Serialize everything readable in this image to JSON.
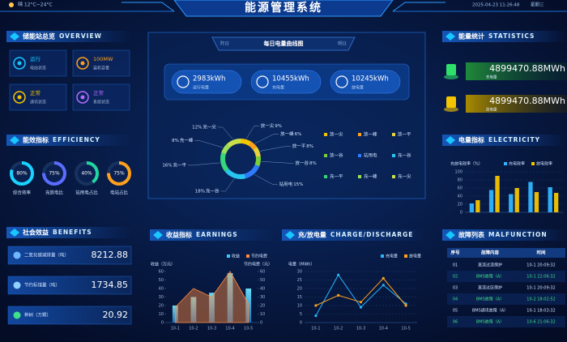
{
  "header": {
    "title": "能源管理系统",
    "weather": "晴 12°C~24°C",
    "datetime": "2025-04-23 11:26:48",
    "weekday": "星期三"
  },
  "overview": {
    "title": "储能站总览",
    "subtitle": "OVERVIEW",
    "items": [
      {
        "value": "运行",
        "label": "电站状态"
      },
      {
        "value": "100MW",
        "label": "装机容量"
      },
      {
        "value": "正常",
        "label": "通讯状态"
      },
      {
        "value": "正常",
        "label": "系统状态"
      }
    ]
  },
  "efficiency": {
    "title": "能效指标",
    "subtitle": "EFFICIENCY",
    "labels": [
      "综合效率",
      "充放电比",
      "站用电占比",
      "电站占比"
    ],
    "values": [
      80,
      75,
      40,
      75
    ],
    "value_labels": [
      "80%",
      "75%",
      "40%",
      "75%"
    ],
    "colors": [
      "#19d3ff",
      "#5b6cff",
      "#21d6a0",
      "#ffa01c"
    ]
  },
  "benefits": {
    "title": "社会效益",
    "subtitle": "BENEFITS",
    "items": [
      {
        "label": "二氧化碳减排量（吨）",
        "value": 8212.88
      },
      {
        "label": "节约标煤量（吨）",
        "value": 1734.85
      },
      {
        "label": "种树（万颗）",
        "value": 20.92
      }
    ]
  },
  "daily": {
    "tabs": [
      "昨日",
      "明日"
    ],
    "title": "每日电量曲线图",
    "stats": [
      {
        "value": "2983kWh",
        "label": "运行电量"
      },
      {
        "value": "10455kWh",
        "label": "充电量"
      },
      {
        "value": "10245kWh",
        "label": "放电量"
      }
    ]
  },
  "statistics": {
    "title": "能量统计",
    "subtitle": "STATISTICS",
    "items": [
      {
        "value": "4899470.88MWh",
        "label": "充电量"
      },
      {
        "value": "4899470.88MWh",
        "label": "放电量"
      }
    ]
  },
  "malfunction": {
    "title": "故障列表",
    "subtitle": "MALFUNCTION",
    "columns": [
      "序号",
      "故障内容",
      "时间"
    ],
    "rows": [
      [
        "01",
        "直流过流保护",
        "10-1 20:09:32"
      ],
      [
        "02",
        "BMS故障（A）",
        "10-1 22:06:32"
      ],
      [
        "03",
        "直流过压保护",
        "10-1 20:09:32"
      ],
      [
        "04",
        "BMS故障（A）",
        "10-2 18:02:52"
      ],
      [
        "05",
        "BMS通讯故障（A）",
        "10-1 18:03:32"
      ],
      [
        "06",
        "BMS故障（A）",
        "10-6 21:06:32"
      ]
    ]
  },
  "chart_data": [
    {
      "type": "pie",
      "categories": [
        "放一尖",
        "放一峰",
        "放一平",
        "放一谷",
        "站用电",
        "充一谷",
        "充一平",
        "充一峰",
        "充一尖"
      ],
      "values": [
        9,
        6,
        8,
        8,
        15,
        18,
        16,
        8,
        12
      ],
      "value_labels": [
        "9%",
        "6%",
        "8%",
        "8%",
        "15%",
        "18%",
        "16%",
        "8%",
        "12%"
      ],
      "colors": [
        "#f5c400",
        "#ff9f1a",
        "#e8d23a",
        "#7ad03a",
        "#2f7bff",
        "#27c6f0",
        "#38d67a",
        "#9be05a",
        "#c8e04a"
      ]
    },
    {
      "type": "bar",
      "title": "电量指标",
      "subtitle": "ELECTRICITY",
      "categories": [
        null,
        null,
        null,
        null,
        null
      ],
      "series": [
        {
          "name": "充电效率",
          "color": "#2fb5ff",
          "values": [
            22,
            55,
            45,
            75,
            62
          ]
        },
        {
          "name": "放电效率",
          "color": "#f5c400",
          "values": [
            30,
            90,
            60,
            50,
            48
          ]
        }
      ],
      "ylabel": "充放电效率（%）",
      "ylim": [
        0,
        100
      ],
      "yticks": [
        0,
        20,
        40,
        60,
        80,
        100
      ],
      "grid": true
    },
    {
      "type": "bar",
      "title": "收益指标",
      "subtitle": "EARNINGS",
      "categories": [
        "10-1",
        "10-2",
        "10-3",
        "10-4",
        "10-5"
      ],
      "series": [
        {
          "name": "收益",
          "color": "#2fd0ff",
          "values": [
            20,
            30,
            35,
            58,
            40
          ]
        },
        {
          "name": "节约电费",
          "color": "#ff8a3d",
          "type": "area",
          "axis": "y2",
          "values": [
            18,
            40,
            30,
            60,
            22
          ]
        }
      ],
      "ylabel": "收益（万元）",
      "y2label": "节约电费（元）",
      "ylim": [
        0,
        60
      ],
      "yticks": [
        0,
        10,
        20,
        30,
        40,
        50,
        60
      ],
      "y2lim": [
        0,
        60
      ],
      "y2ticks": [
        0,
        10,
        20,
        30,
        40,
        50,
        60
      ],
      "grid": false
    },
    {
      "type": "line",
      "title": "充/放电量",
      "subtitle": "CHARGE/DISCHARGE",
      "categories": [
        "10-1",
        "10-2",
        "10-3",
        "10-4",
        "10-5"
      ],
      "series": [
        {
          "name": "充电量",
          "color": "#28b4ff",
          "values": [
            4,
            28,
            9,
            22,
            11
          ]
        },
        {
          "name": "放电量",
          "color": "#ffa01c",
          "values": [
            10,
            16,
            12,
            26,
            10
          ]
        }
      ],
      "ylabel": "电量（MWh）",
      "ylim": [
        0,
        30
      ],
      "yticks": [
        0,
        5,
        10,
        15,
        20,
        25,
        30
      ],
      "grid": true
    }
  ]
}
